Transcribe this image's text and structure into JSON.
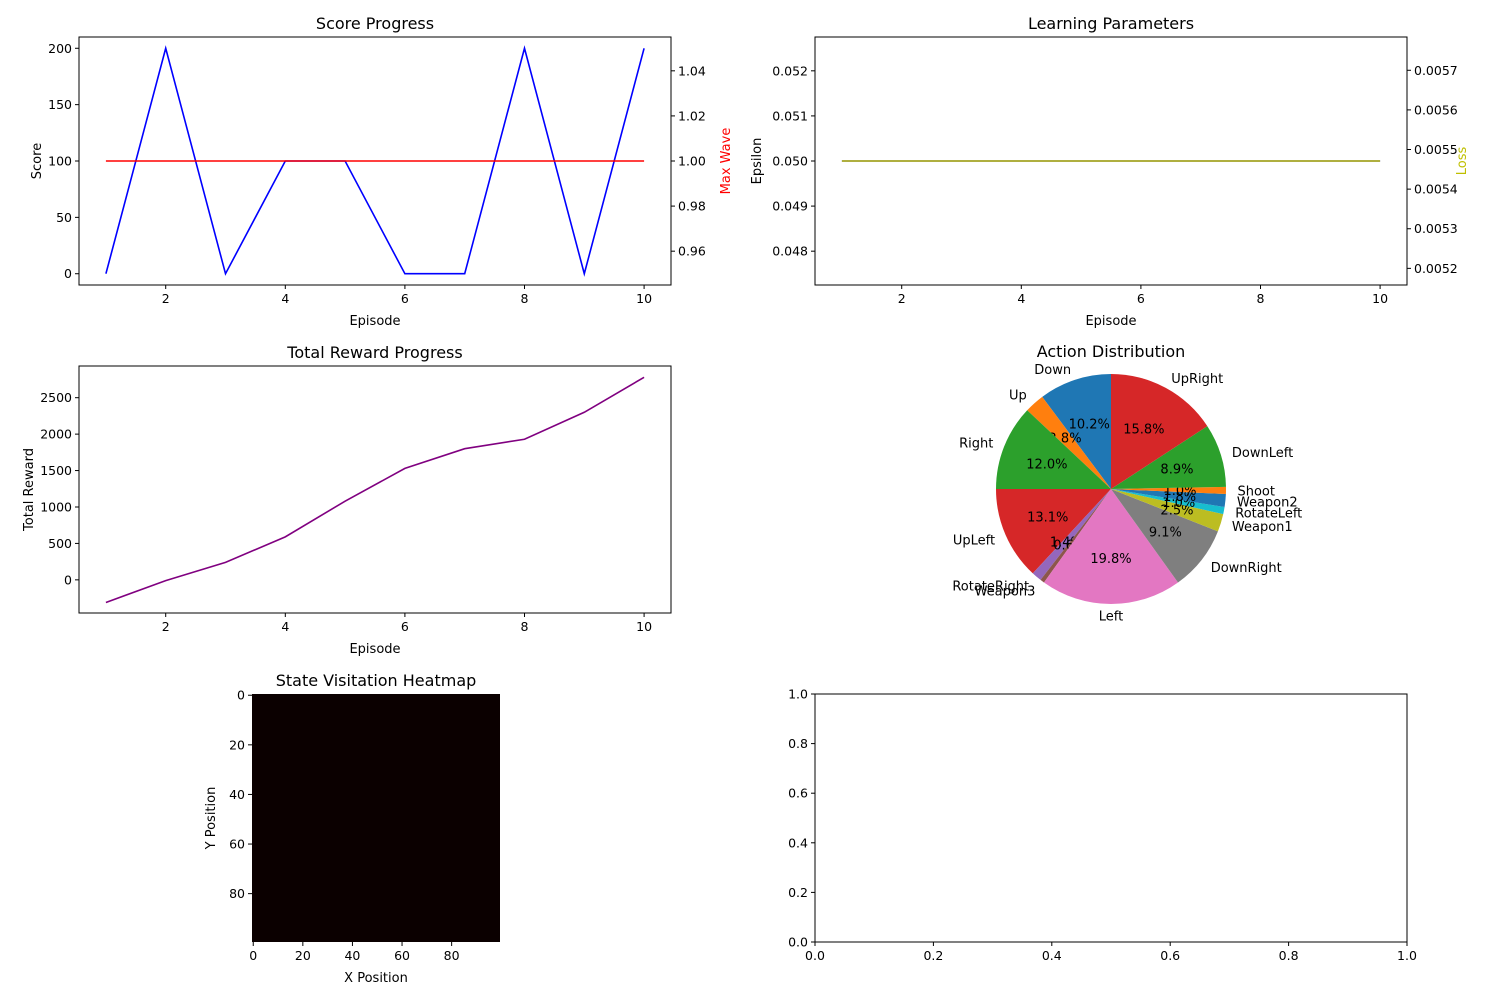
{
  "chart_data": [
    {
      "id": "score",
      "type": "line",
      "title": "Score Progress",
      "xlabel": "Episode",
      "ylabel": "Score",
      "y2label": "Max Wave",
      "xlim": [
        0.55,
        10.45
      ],
      "ylim": [
        -10,
        210
      ],
      "y2lim": [
        0.945,
        1.055
      ],
      "xticks": [
        2,
        4,
        6,
        8,
        10
      ],
      "yticks": [
        0,
        50,
        100,
        150,
        200
      ],
      "y2ticks": [
        0.96,
        0.98,
        1.0,
        1.02,
        1.04
      ],
      "y2tick_labels": [
        "0.96",
        "0.98",
        "1.00",
        "1.02",
        "1.04"
      ],
      "y2label_color": "#ff0000",
      "series": [
        {
          "axis": "y",
          "color": "#0000ff",
          "x": [
            1,
            2,
            3,
            4,
            5,
            6,
            7,
            8,
            9,
            10
          ],
          "values": [
            0,
            200,
            0,
            100,
            100,
            0,
            0,
            200,
            0,
            200
          ]
        },
        {
          "axis": "y2",
          "color": "#ff0000",
          "x": [
            1,
            2,
            3,
            4,
            5,
            6,
            7,
            8,
            9,
            10
          ],
          "values": [
            1,
            1,
            1,
            1,
            1,
            1,
            1,
            1,
            1,
            1
          ]
        }
      ]
    },
    {
      "id": "learning",
      "type": "line",
      "title": "Learning Parameters",
      "xlabel": "Episode",
      "ylabel": "Epsilon",
      "y2label": "Loss",
      "xlim": [
        0.55,
        10.45
      ],
      "ylim": [
        0.04725,
        0.05275
      ],
      "y2lim": [
        0.005158,
        0.005784
      ],
      "xticks": [
        2,
        4,
        6,
        8,
        10
      ],
      "yticks": [
        0.048,
        0.049,
        0.05,
        0.051,
        0.052
      ],
      "ytick_labels": [
        "0.048",
        "0.049",
        "0.050",
        "0.051",
        "0.052"
      ],
      "y2ticks": [
        0.0052,
        0.0053,
        0.0054,
        0.0055,
        0.0056,
        0.0057
      ],
      "y2tick_labels": [
        "0.0052",
        "0.0053",
        "0.0054",
        "0.0055",
        "0.0056",
        "0.0057"
      ],
      "y2label_color": "#bfbf00",
      "series": [
        {
          "axis": "y",
          "color": "#0000ff",
          "x": [
            1,
            2,
            3,
            4,
            5,
            6,
            7,
            8,
            9,
            10
          ],
          "values": [
            0.05,
            0.05,
            0.05,
            0.05,
            0.05,
            0.05,
            0.05,
            0.05,
            0.05,
            0.05
          ]
        },
        {
          "axis": "y2",
          "color": "#bfbf00",
          "x": [
            1,
            2,
            3,
            4,
            5,
            6,
            7,
            8,
            9,
            10
          ],
          "values": [
            0.005471,
            0.005471,
            0.005471,
            0.005471,
            0.005471,
            0.005471,
            0.005471,
            0.005471,
            0.005471,
            0.005471
          ]
        }
      ]
    },
    {
      "id": "reward",
      "type": "line",
      "title": "Total Reward Progress",
      "xlabel": "Episode",
      "ylabel": "Total Reward",
      "xlim": [
        0.55,
        10.45
      ],
      "ylim": [
        -455,
        2935
      ],
      "xticks": [
        2,
        4,
        6,
        8,
        10
      ],
      "yticks": [
        0,
        500,
        1000,
        1500,
        2000,
        2500
      ],
      "series": [
        {
          "axis": "y",
          "color": "#800080",
          "x": [
            1,
            2,
            3,
            4,
            5,
            6,
            7,
            8,
            9,
            10
          ],
          "values": [
            -310,
            -10,
            240,
            590,
            1080,
            1530,
            1800,
            1930,
            2300,
            2780
          ]
        }
      ]
    },
    {
      "id": "actions",
      "type": "pie",
      "title": "Action Distribution",
      "start_angle": 90,
      "slices": [
        {
          "label": "Down",
          "value": 10.2,
          "pct": "10.2%",
          "color": "#1f77b4"
        },
        {
          "label": "Up",
          "value": 2.8,
          "pct": "2.8%",
          "color": "#ff7f0e"
        },
        {
          "label": "Right",
          "value": 12.0,
          "pct": "12.0%",
          "color": "#2ca02c"
        },
        {
          "label": "UpLeft",
          "value": 13.1,
          "pct": "13.1%",
          "color": "#d62728"
        },
        {
          "label": "RotateRight",
          "value": 1.4,
          "pct": "1.4%",
          "color": "#9467bd"
        },
        {
          "label": "Weapon3",
          "value": 0.6,
          "pct": "0.6%",
          "color": "#8c564b"
        },
        {
          "label": "Left",
          "value": 19.8,
          "pct": "19.8%",
          "color": "#e377c2"
        },
        {
          "label": "DownRight",
          "value": 9.1,
          "pct": "9.1%",
          "color": "#7f7f7f"
        },
        {
          "label": "Weapon1",
          "value": 2.5,
          "pct": "2.5%",
          "color": "#bcbd22"
        },
        {
          "label": "RotateLeft",
          "value": 1.0,
          "pct": "1.0%",
          "color": "#17becf"
        },
        {
          "label": "Weapon2",
          "value": 1.8,
          "pct": "1.8%",
          "color": "#1f77b4"
        },
        {
          "label": "Shoot",
          "value": 1.0,
          "pct": "1.0%",
          "color": "#ff7f0e"
        },
        {
          "label": "DownLeft",
          "value": 8.9,
          "pct": "8.9%",
          "color": "#2ca02c"
        },
        {
          "label": "UpRight",
          "value": 15.8,
          "pct": "15.8%",
          "color": "#d62728"
        }
      ]
    },
    {
      "id": "heatmap",
      "type": "heatmap",
      "title": "State Visitation Heatmap",
      "xlabel": "X Position",
      "ylabel": "Y Position",
      "xlim": [
        -0.5,
        99.5
      ],
      "ylim": [
        99.5,
        -0.5
      ],
      "xticks": [
        0,
        20,
        40,
        60,
        80
      ],
      "yticks": [
        0,
        20,
        40,
        60,
        80
      ],
      "fill_color": "#0b0000"
    },
    {
      "id": "empty",
      "type": "line",
      "title": "",
      "xlim": [
        0,
        1
      ],
      "ylim": [
        0,
        1
      ],
      "xticks": [
        0,
        0.2,
        0.4,
        0.6,
        0.8,
        1.0
      ],
      "xtick_labels": [
        "0.0",
        "0.2",
        "0.4",
        "0.6",
        "0.8",
        "1.0"
      ],
      "yticks": [
        0,
        0.2,
        0.4,
        0.6,
        0.8,
        1.0
      ],
      "ytick_labels": [
        "0.0",
        "0.2",
        "0.4",
        "0.6",
        "0.8",
        "1.0"
      ],
      "series": []
    }
  ]
}
